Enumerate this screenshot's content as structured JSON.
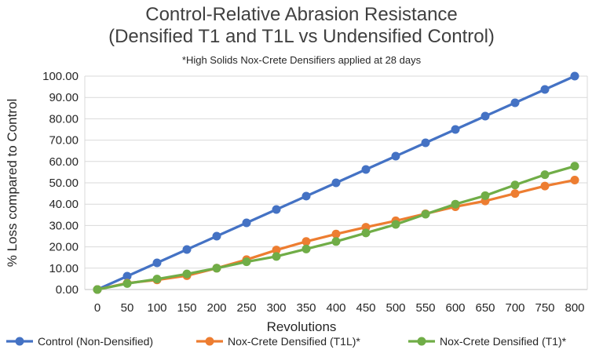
{
  "chart_data": {
    "type": "line",
    "title_line1": "Control-Relative Abrasion Resistance",
    "title_line2": "(Densified T1 and T1L vs Undensified Control)",
    "subtitle": "*High Solids Nox-Crete Densifiers applied at 28 days",
    "xlabel": "Revolutions",
    "ylabel": "% Loss compared to Control",
    "x": [
      0,
      50,
      100,
      150,
      200,
      250,
      300,
      350,
      400,
      450,
      500,
      550,
      600,
      650,
      700,
      750,
      800
    ],
    "x_tick_labels": [
      "0",
      "50",
      "100",
      "150",
      "200",
      "250",
      "300",
      "350",
      "400",
      "450",
      "500",
      "550",
      "600",
      "650",
      "700",
      "750",
      "800"
    ],
    "ylim": [
      0,
      100
    ],
    "y_ticks": [
      0,
      10,
      20,
      30,
      40,
      50,
      60,
      70,
      80,
      90,
      100
    ],
    "y_tick_labels": [
      "0.00",
      "10.00",
      "20.00",
      "30.00",
      "40.00",
      "50.00",
      "60.00",
      "70.00",
      "80.00",
      "90.00",
      "100.00"
    ],
    "grid": "horizontal",
    "legend_position": "bottom",
    "series": [
      {
        "name": "Control (Non-Densified)",
        "color": "#4472C4",
        "values": [
          0,
          6.25,
          12.5,
          18.75,
          25,
          31.25,
          37.5,
          43.75,
          50,
          56.25,
          62.5,
          68.75,
          75,
          81.25,
          87.5,
          93.75,
          100
        ]
      },
      {
        "name": "Nox-Crete Densified (T1L)*",
        "color": "#ED7D31",
        "values": [
          0,
          3,
          4.5,
          6.5,
          10,
          14,
          18.5,
          22.5,
          26,
          29.2,
          32.2,
          35.5,
          38.8,
          41.5,
          45,
          48.5,
          51.3
        ]
      },
      {
        "name": "Nox-Crete Densified (T1)*",
        "color": "#70AD47",
        "values": [
          0,
          2.8,
          4.9,
          7.3,
          10,
          13,
          15.5,
          19,
          22.5,
          26.5,
          30.5,
          35.3,
          40,
          44,
          49,
          53.8,
          57.8
        ]
      }
    ]
  }
}
